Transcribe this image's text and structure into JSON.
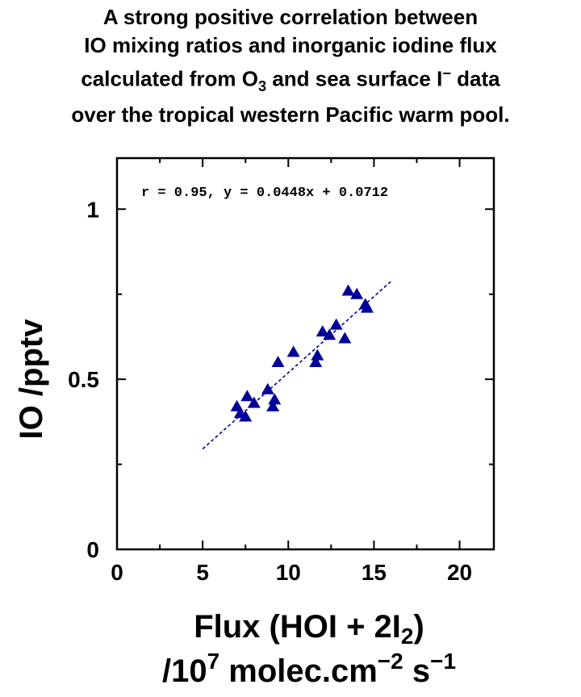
{
  "title": {
    "line1": "A strong positive correlation between",
    "line2": "IO mixing ratios and inorganic iodine flux",
    "line3_before": "calculated from O",
    "line3_sub": "3",
    "line3_mid": " and sea surface I",
    "line3_sup": "−",
    "line3_after": " data",
    "line4": "over the tropical western Pacific warm pool."
  },
  "chart_data": {
    "type": "scatter",
    "annotation": "r = 0.95, y = 0.0448x + 0.0712",
    "fit": {
      "slope": 0.0448,
      "intercept": 0.0712,
      "x_range": [
        5,
        16
      ],
      "style": "dashed"
    },
    "xlim": [
      0,
      22
    ],
    "ylim": [
      0,
      1.15
    ],
    "x_ticks": [
      0,
      5,
      10,
      15,
      20
    ],
    "x_ticks_minor": [
      2.5,
      7.5,
      12.5,
      17.5
    ],
    "y_ticks": [
      0,
      0.5,
      1
    ],
    "y_ticks_minor": [
      0.25,
      0.75
    ],
    "x_tick_labels": [
      "0",
      "5",
      "10",
      "15",
      "20"
    ],
    "y_tick_labels": [
      "0",
      "0.5",
      "1"
    ],
    "ylabel": "IO /pptv",
    "xlabel": {
      "line1_before": "Flux (HOI + 2I",
      "line1_sub": "2",
      "line1_after": ")",
      "line2_before": "/10",
      "line2_exp1": "7",
      "line2_mid": " molec.cm",
      "line2_exp2": "−2",
      "line2_mid2": " s",
      "line2_exp3": "−1"
    },
    "marker": "triangle",
    "marker_color": "#000099",
    "line_color": "#000099",
    "points": [
      {
        "x": 7.0,
        "y": 0.42
      },
      {
        "x": 7.2,
        "y": 0.4
      },
      {
        "x": 7.5,
        "y": 0.39
      },
      {
        "x": 7.6,
        "y": 0.45
      },
      {
        "x": 8.0,
        "y": 0.43
      },
      {
        "x": 8.8,
        "y": 0.47
      },
      {
        "x": 9.1,
        "y": 0.42
      },
      {
        "x": 9.2,
        "y": 0.44
      },
      {
        "x": 9.4,
        "y": 0.55
      },
      {
        "x": 10.3,
        "y": 0.58
      },
      {
        "x": 11.6,
        "y": 0.55
      },
      {
        "x": 11.7,
        "y": 0.57
      },
      {
        "x": 12.0,
        "y": 0.64
      },
      {
        "x": 12.4,
        "y": 0.63
      },
      {
        "x": 12.8,
        "y": 0.66
      },
      {
        "x": 13.3,
        "y": 0.62
      },
      {
        "x": 13.5,
        "y": 0.76
      },
      {
        "x": 14.0,
        "y": 0.75
      },
      {
        "x": 14.5,
        "y": 0.72
      },
      {
        "x": 14.6,
        "y": 0.71
      }
    ]
  }
}
